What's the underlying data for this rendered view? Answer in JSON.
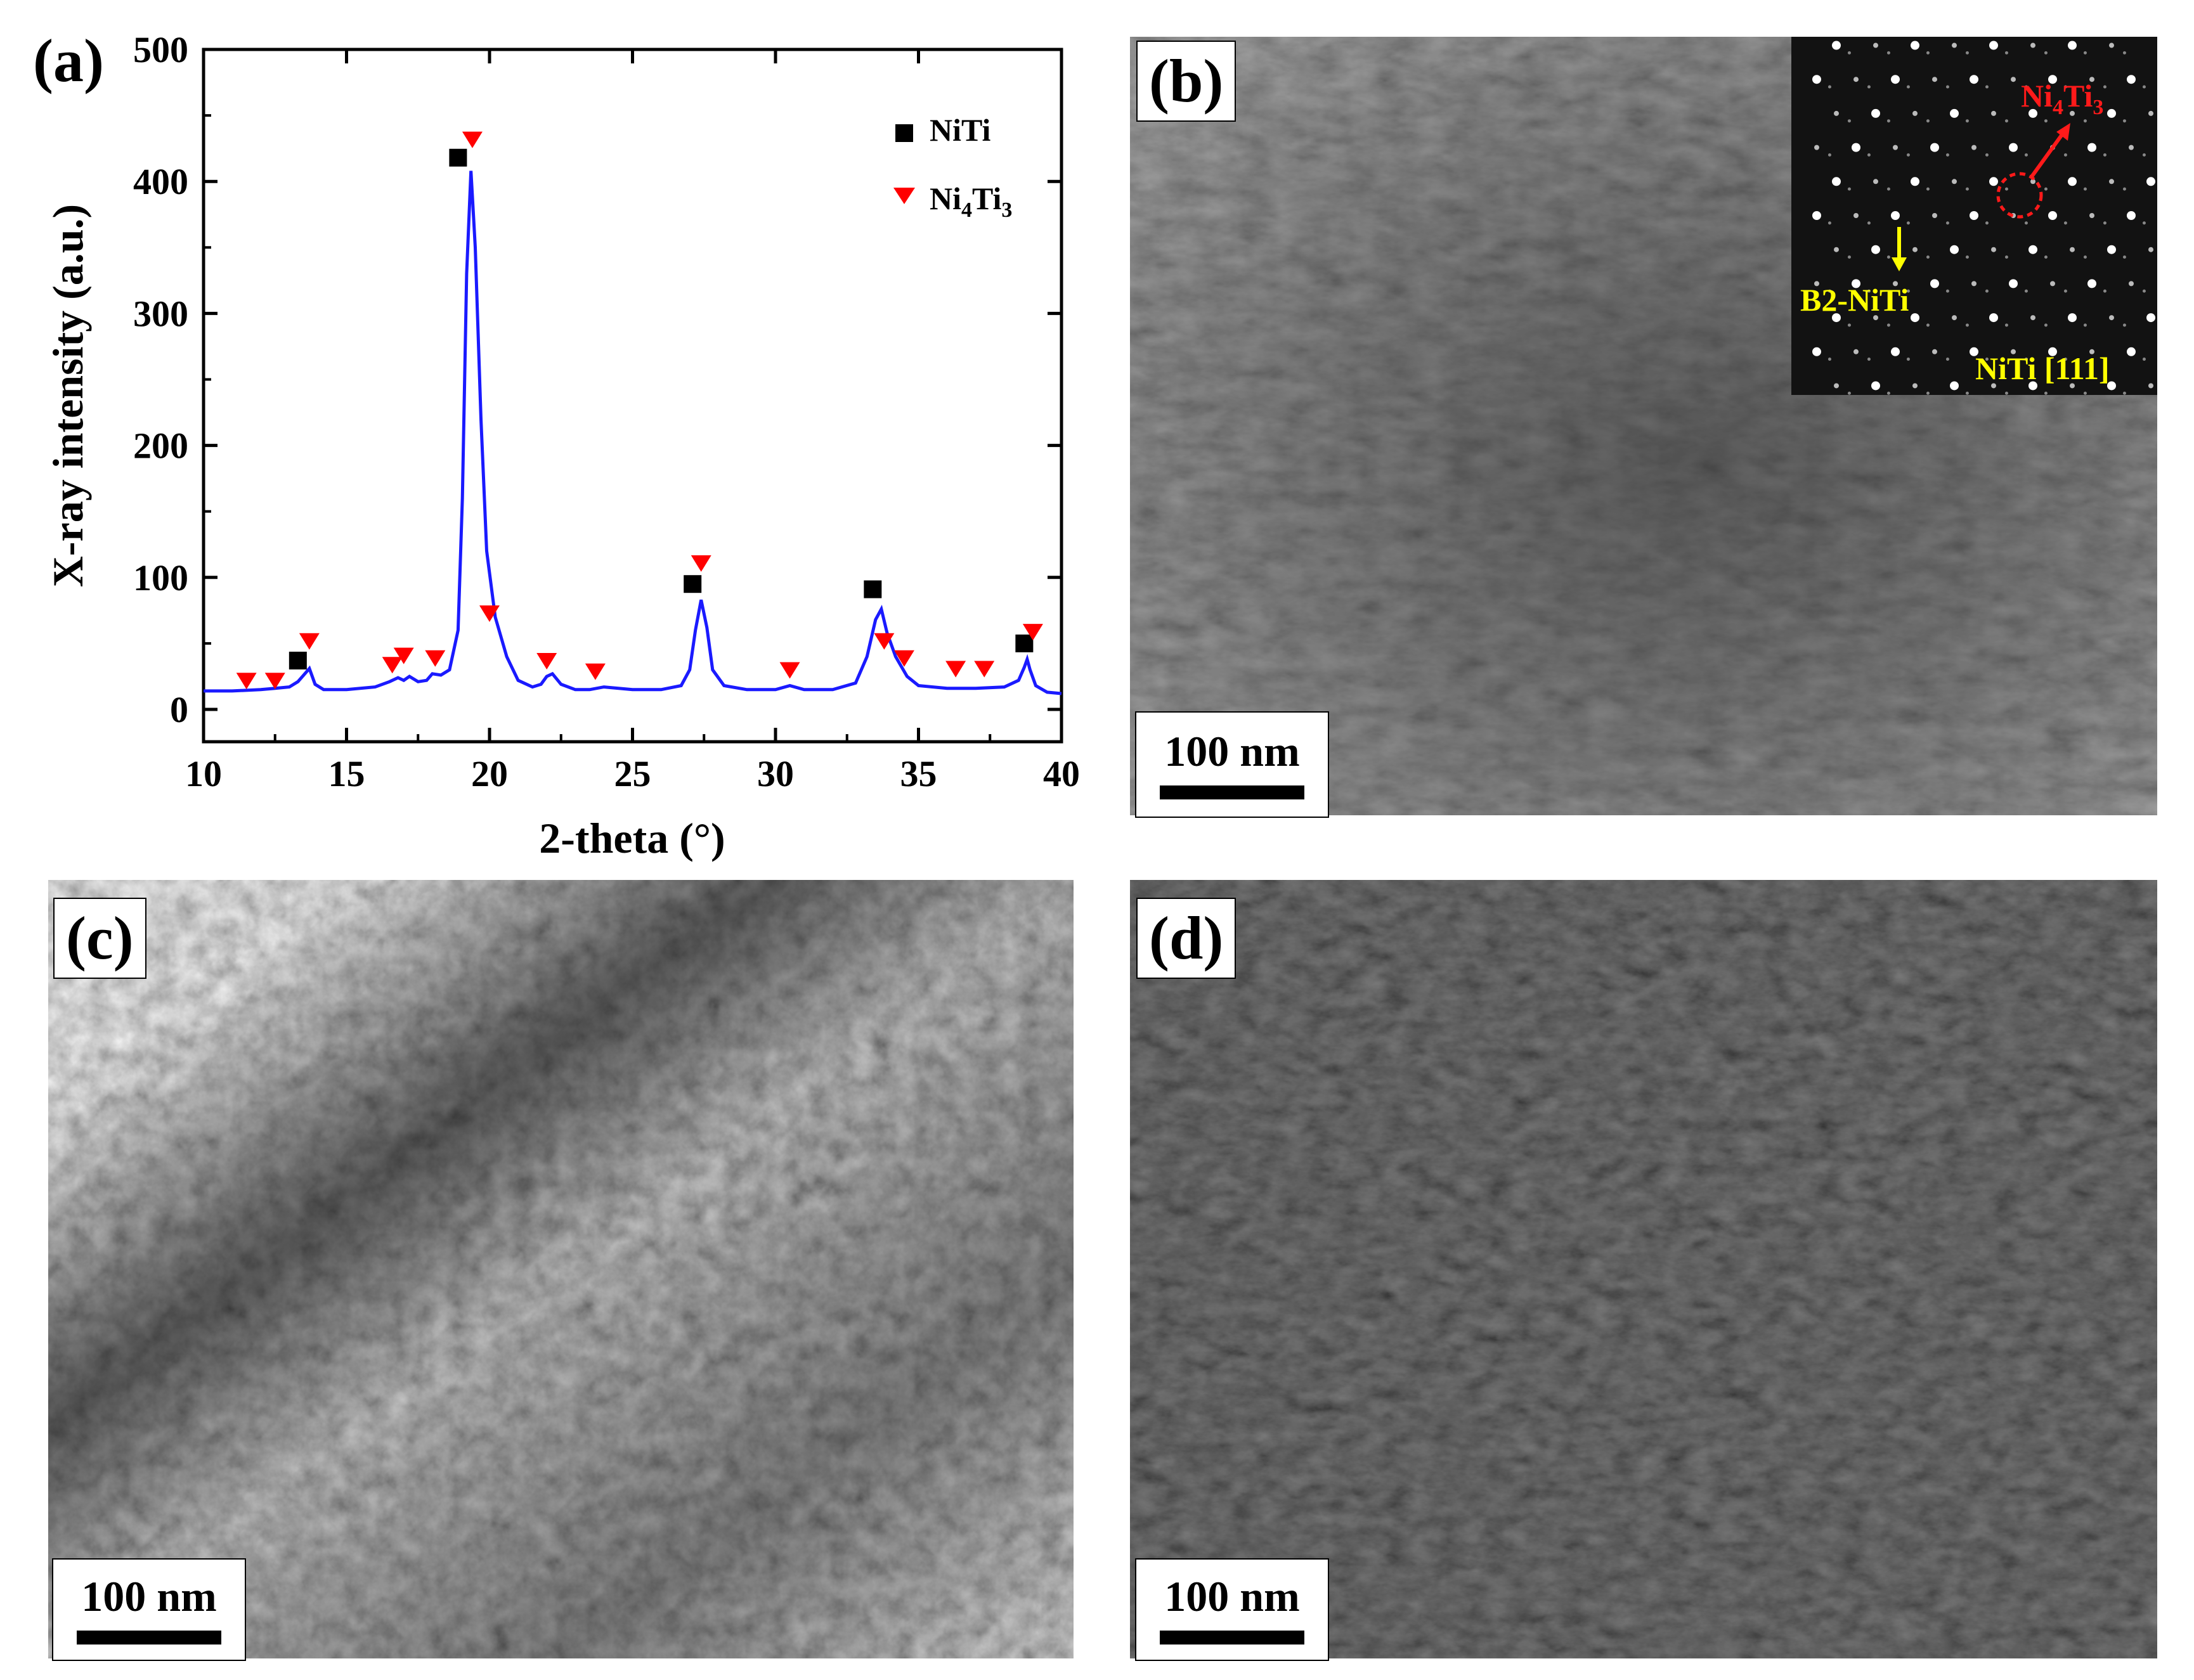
{
  "panels": {
    "a": {
      "label": "(a)"
    },
    "b": {
      "label": "(b)",
      "scale_bar": "100 nm",
      "inset": {
        "label_ni4ti3_base": "Ni",
        "label_ni4ti3_sub1": "4",
        "label_ni4ti3_mid": "Ti",
        "label_ni4ti3_sub2": "3",
        "label_b2": "B2-NiTi",
        "label_zone": "NiTi [111]"
      }
    },
    "c": {
      "label": "(c)",
      "scale_bar": "100 nm"
    },
    "d": {
      "label": "(d)",
      "scale_bar": "100 nm"
    }
  },
  "colors": {
    "curve": "#1a1aff",
    "niti_marker": "#000000",
    "ni4ti3_marker": "#ff0000",
    "inset_red": "#ff1a1a",
    "inset_yellow": "#ffff00"
  },
  "chart_data": {
    "type": "line",
    "xlabel": "2-theta (°)",
    "ylabel": "X-ray intensity (a.u.)",
    "xlim": [
      10,
      40
    ],
    "ylim": [
      0,
      500
    ],
    "xticks": [
      10,
      15,
      20,
      25,
      30,
      35,
      40
    ],
    "yticks": [
      0,
      100,
      200,
      300,
      400,
      500
    ],
    "legend": {
      "placement": "top-right",
      "entries": [
        {
          "name": "NiTi",
          "marker": "square"
        },
        {
          "name_base": "Ni",
          "sub1": "4",
          "name_mid": "Ti",
          "sub2": "3",
          "marker": "triangle-down"
        }
      ]
    },
    "series": [
      {
        "x": [
          10,
          11,
          12,
          12.5,
          13,
          13.3,
          13.5,
          13.7,
          13.9,
          14.2,
          15,
          16,
          16.5,
          16.8,
          17,
          17.2,
          17.5,
          17.8,
          18,
          18.3,
          18.6,
          18.9,
          19.05,
          19.2,
          19.35,
          19.5,
          19.7,
          19.9,
          20.2,
          20.6,
          21,
          21.5,
          21.8,
          22,
          22.2,
          22.5,
          23,
          23.5,
          24,
          25,
          26,
          26.7,
          27,
          27.2,
          27.4,
          27.6,
          27.8,
          28.2,
          29,
          30,
          30.5,
          31,
          32,
          32.8,
          33.2,
          33.5,
          33.7,
          33.9,
          34.2,
          34.6,
          35,
          36,
          37,
          38,
          38.5,
          38.7,
          38.8,
          38.9,
          39.1,
          39.5,
          40
        ],
        "y": [
          14,
          14,
          15,
          16,
          17,
          21,
          26,
          31,
          19,
          15,
          15,
          17,
          21,
          24,
          22,
          25,
          21,
          22,
          27,
          26,
          30,
          60,
          160,
          330,
          408,
          350,
          220,
          120,
          70,
          40,
          22,
          17,
          19,
          25,
          27,
          19,
          15,
          15,
          17,
          15,
          15,
          18,
          30,
          60,
          83,
          62,
          30,
          18,
          15,
          15,
          18,
          15,
          15,
          20,
          40,
          68,
          76,
          58,
          40,
          25,
          18,
          16,
          16,
          17,
          22,
          32,
          38,
          30,
          18,
          13,
          12
        ]
      }
    ],
    "markers": {
      "niti": [
        [
          13.3,
          37
        ],
        [
          18.9,
          418
        ],
        [
          27.1,
          95
        ],
        [
          33.4,
          91
        ],
        [
          38.7,
          50
        ]
      ],
      "ni4ti3": [
        [
          11.5,
          22
        ],
        [
          12.5,
          22
        ],
        [
          13.7,
          52
        ],
        [
          16.6,
          34
        ],
        [
          17.0,
          41
        ],
        [
          18.1,
          39
        ],
        [
          19.4,
          432
        ],
        [
          20.0,
          73
        ],
        [
          22.0,
          37
        ],
        [
          23.7,
          29
        ],
        [
          27.4,
          111
        ],
        [
          30.5,
          30
        ],
        [
          33.8,
          52
        ],
        [
          34.5,
          39
        ],
        [
          36.3,
          31
        ],
        [
          37.3,
          31
        ],
        [
          39.0,
          59
        ]
      ]
    }
  }
}
